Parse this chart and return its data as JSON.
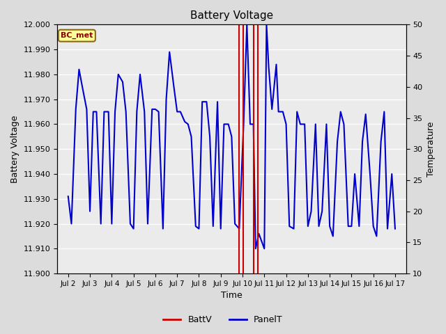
{
  "title": "Battery Voltage",
  "xlabel": "Time",
  "ylabel_left": "Battery Voltage",
  "ylabel_right": "Temperature",
  "ylim_left": [
    11.9,
    12.0
  ],
  "ylim_right": [
    10,
    50
  ],
  "yticks_left": [
    11.9,
    11.91,
    11.92,
    11.93,
    11.94,
    11.95,
    11.96,
    11.97,
    11.98,
    11.99,
    12.0
  ],
  "yticks_right": [
    10,
    15,
    20,
    25,
    30,
    35,
    40,
    45,
    50
  ],
  "xtick_labels": [
    "Jul 2",
    "Jul 3",
    "Jul 4",
    "Jul 5",
    "Jul 6",
    "Jul 7",
    "Jul 8",
    "Jul 9",
    "Jul 10",
    "Jul 11",
    "Jul 12",
    "Jul 13",
    "Jul 14",
    "Jul 15",
    "Jul 16",
    "Jul 17"
  ],
  "xtick_positions": [
    2,
    3,
    4,
    5,
    6,
    7,
    8,
    9,
    10,
    11,
    12,
    13,
    14,
    15,
    16,
    17
  ],
  "xlim": [
    1.5,
    17.5
  ],
  "bg_color": "#dcdcdc",
  "plot_bg_color": "#ebebeb",
  "grid_color": "#ffffff",
  "label_box_text": "BC_met",
  "label_box_color": "#ffff99",
  "label_box_edge": "#8b6914",
  "panelT_color": "#0000cc",
  "battV_color": "#cc0000",
  "red_vlines": [
    9.83,
    10.03,
    10.5,
    10.7
  ],
  "panelT_x": [
    2.0,
    2.15,
    2.35,
    2.5,
    2.65,
    2.85,
    3.0,
    3.15,
    3.3,
    3.5,
    3.65,
    3.85,
    4.0,
    4.15,
    4.3,
    4.5,
    4.65,
    4.85,
    5.0,
    5.15,
    5.3,
    5.5,
    5.65,
    5.85,
    6.0,
    6.15,
    6.35,
    6.5,
    6.65,
    6.85,
    7.0,
    7.15,
    7.35,
    7.5,
    7.65,
    7.85,
    8.0,
    8.15,
    8.35,
    8.5,
    8.65,
    8.85,
    9.0,
    9.15,
    9.35,
    9.5,
    9.65,
    9.85,
    10.05,
    10.2,
    10.35,
    10.5,
    10.6,
    10.75,
    11.0,
    11.1,
    11.2,
    11.35,
    11.55,
    11.65,
    11.85,
    12.0,
    12.15,
    12.35,
    12.5,
    12.65,
    12.85,
    13.0,
    13.15,
    13.35,
    13.5,
    13.65,
    13.85,
    14.0,
    14.15,
    14.35,
    14.5,
    14.65,
    14.85,
    15.0,
    15.15,
    15.35,
    15.5,
    15.65,
    15.85,
    16.0,
    16.15,
    16.35,
    16.5,
    16.65,
    16.85,
    17.0
  ],
  "panelT_y": [
    11.931,
    11.92,
    11.966,
    11.982,
    11.975,
    11.966,
    11.925,
    11.965,
    11.965,
    11.92,
    11.965,
    11.965,
    11.92,
    11.965,
    11.98,
    11.977,
    11.965,
    11.92,
    11.918,
    11.965,
    11.98,
    11.965,
    11.92,
    11.966,
    11.966,
    11.965,
    11.918,
    11.97,
    11.989,
    11.975,
    11.965,
    11.965,
    11.961,
    11.96,
    11.955,
    11.919,
    11.918,
    11.969,
    11.969,
    11.955,
    11.919,
    11.969,
    11.918,
    11.96,
    11.96,
    11.955,
    11.92,
    11.918,
    11.96,
    12.0,
    11.96,
    11.96,
    11.91,
    11.916,
    11.91,
    12.0,
    11.983,
    11.966,
    11.984,
    11.965,
    11.965,
    11.96,
    11.919,
    11.918,
    11.965,
    11.96,
    11.96,
    11.919,
    11.925,
    11.96,
    11.919,
    11.925,
    11.96,
    11.919,
    11.915,
    11.953,
    11.965,
    11.96,
    11.919,
    11.919,
    11.94,
    11.919,
    11.953,
    11.964,
    11.94,
    11.919,
    11.915,
    11.953,
    11.965,
    11.918,
    11.94,
    11.918
  ]
}
